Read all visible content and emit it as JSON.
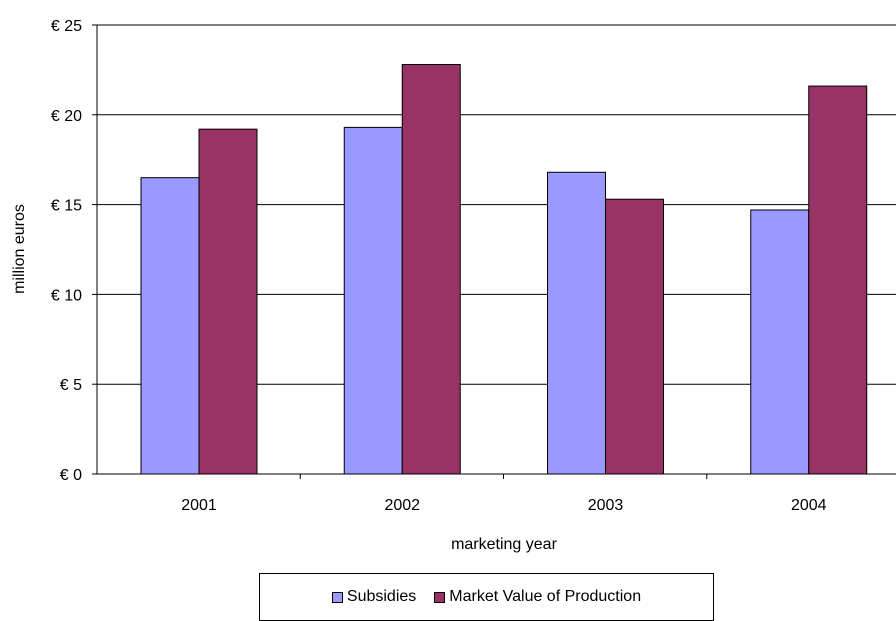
{
  "chart_data": {
    "type": "bar",
    "title": "",
    "xlabel": "marketing year",
    "ylabel": "million euros",
    "categories": [
      "2001",
      "2002",
      "2003",
      "2004"
    ],
    "series": [
      {
        "name": "Subsidies",
        "values": [
          16.5,
          19.3,
          16.8,
          14.7
        ],
        "color": "#9999ff"
      },
      {
        "name": "Market Value of Production",
        "values": [
          19.2,
          22.8,
          15.3,
          21.6
        ],
        "color": "#993366"
      }
    ],
    "ylim": [
      0,
      25
    ],
    "yticks": [
      0,
      5,
      10,
      15,
      20,
      25
    ],
    "ytick_labels": [
      "€ 0",
      "€ 5",
      "€ 10",
      "€ 15",
      "€ 20",
      "€ 25"
    ],
    "grid": true,
    "legend_position": "bottom"
  }
}
